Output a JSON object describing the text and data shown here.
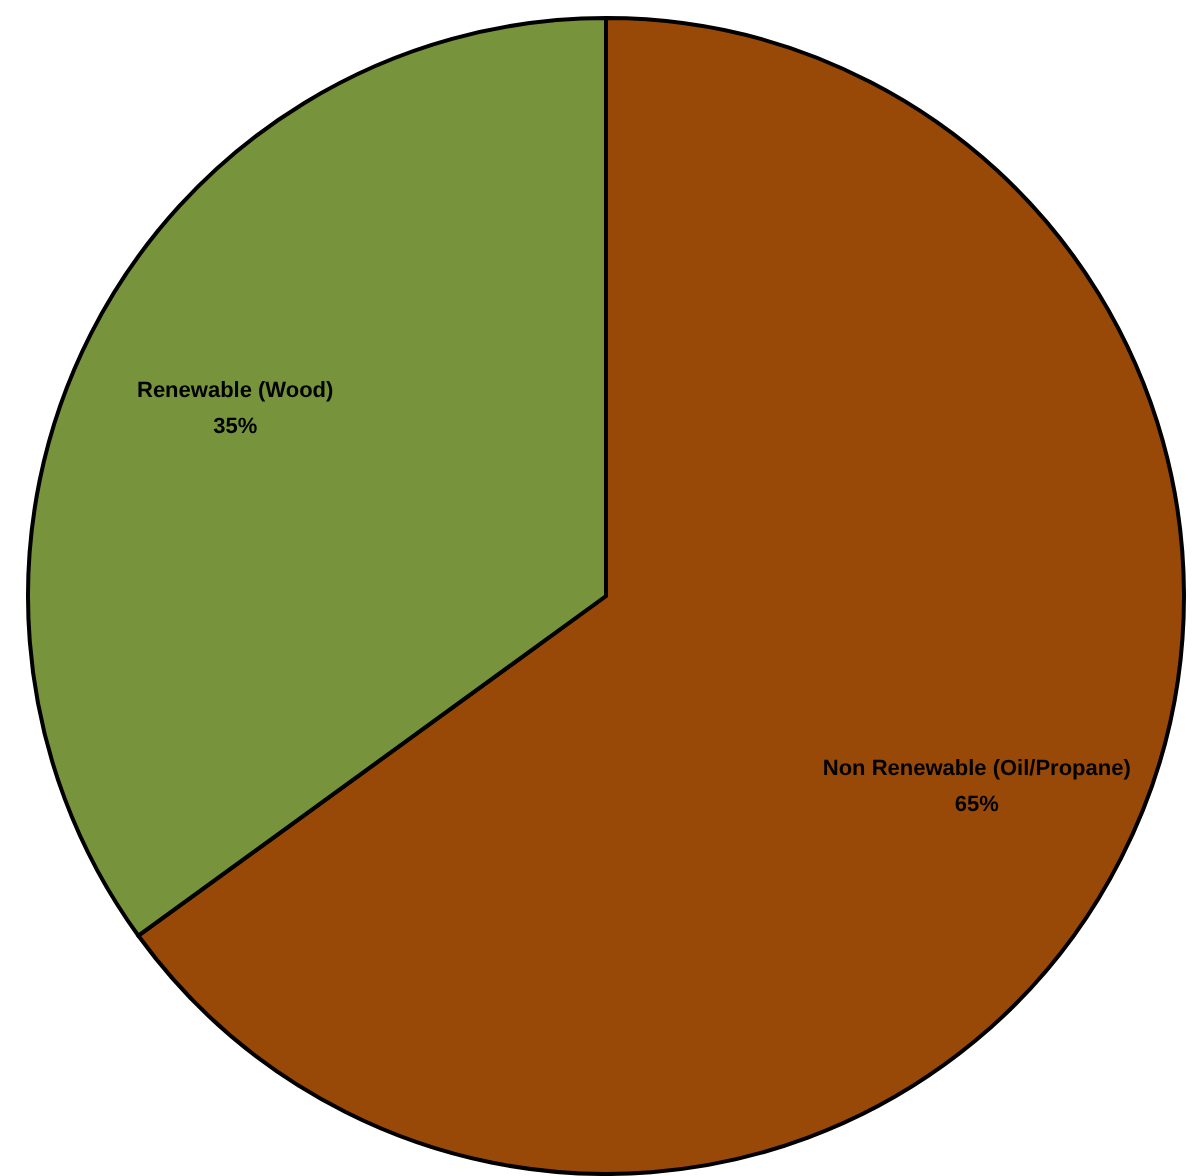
{
  "chart_data": {
    "type": "pie",
    "categories": [
      "Non Renewable (Oil/Propane)",
      "Renewable (Wood)"
    ],
    "values": [
      65,
      35
    ],
    "colors": [
      "#984807",
      "#77933c"
    ],
    "value_labels": [
      "65%",
      "35%"
    ]
  }
}
